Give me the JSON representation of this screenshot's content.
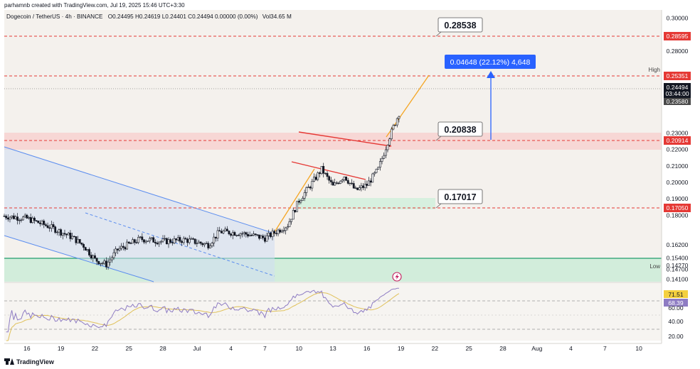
{
  "header": {
    "credit": "parhamnb created with TradingView.com, Jul 19, 2025 15:46 UTC+3:30",
    "symbol_line": "Dogecoin / TetherUS · 4h · BINANCE",
    "ohlc": "O0.24495 H0.24619 L0.24401 C0.24494 0.00000 (0.00%)",
    "volume": "Vol34.65 M"
  },
  "footer": {
    "brand": "TradingView"
  },
  "annotations": {
    "level_1": "0.28538",
    "level_2": "0.20838",
    "level_3": "0.17017",
    "measure": "0.04648 (22.12%) 4,648",
    "high_label": "High",
    "low_label": "Low"
  },
  "price_axis": {
    "ticks": [
      "0.30000",
      "0.28000",
      "0.25777",
      "0.23000",
      "0.22000",
      "0.21000",
      "0.20000",
      "0.19000",
      "0.18000",
      "0.16200",
      "0.15400",
      "0.14700",
      "0.14100"
    ],
    "badges": {
      "red_top": "0.28595",
      "red_high": "0.25351",
      "current": "0.24494",
      "countdown": "03:44:00",
      "prev": "0.23580",
      "red_mid": "0.20914",
      "red_low": "0.17050",
      "low_value": "0.14270"
    }
  },
  "rsi_axis": {
    "ticks": [
      "60.00",
      "40.00",
      "20.00"
    ],
    "badges": {
      "rsi": "71.51",
      "ma": "68.39"
    }
  },
  "time_axis": {
    "ticks": [
      "16",
      "19",
      "22",
      "25",
      "28",
      "Jul",
      "4",
      "7",
      "10",
      "13",
      "16",
      "19",
      "22",
      "25",
      "28",
      "Aug",
      "4",
      "7",
      "10"
    ]
  },
  "colors": {
    "background": "#f4f1ed",
    "candle": "#131722",
    "red_line": "#e53935",
    "channel_blue": "#5b8def",
    "green_zone": "#c9ecd6",
    "red_zone": "#f7d2d0",
    "orange_line": "#f5a623",
    "arrow_blue": "#2962ff",
    "rsi_line": "#8e7cc3",
    "rsi_ma": "#e0c15a"
  },
  "chart_data": {
    "type": "candlestick",
    "title": "Dogecoin / TetherUS · 4h · BINANCE",
    "x_range": [
      "2025-06-14",
      "2025-08-11"
    ],
    "y_range": [
      0.1395,
      0.305
    ],
    "anchors": [
      [
        "2025-06-14",
        0.1795
      ],
      [
        "2025-06-16",
        0.178
      ],
      [
        "2025-06-18",
        0.173
      ],
      [
        "2025-06-20",
        0.1665
      ],
      [
        "2025-06-21",
        0.1615
      ],
      [
        "2025-06-22",
        0.153
      ],
      [
        "2025-06-23",
        0.15
      ],
      [
        "2025-06-24",
        0.159
      ],
      [
        "2025-06-26",
        0.1655
      ],
      [
        "2025-06-28",
        0.164
      ],
      [
        "2025-06-30",
        0.165
      ],
      [
        "2025-07-02",
        0.162
      ],
      [
        "2025-07-03",
        0.17
      ],
      [
        "2025-07-05",
        0.169
      ],
      [
        "2025-07-07",
        0.166
      ],
      [
        "2025-07-08",
        0.17
      ],
      [
        "2025-07-09",
        0.174
      ],
      [
        "2025-07-10",
        0.189
      ],
      [
        "2025-07-11",
        0.198
      ],
      [
        "2025-07-12",
        0.208
      ],
      [
        "2025-07-13",
        0.1975
      ],
      [
        "2025-07-14",
        0.204
      ],
      [
        "2025-07-15",
        0.195
      ],
      [
        "2025-07-16",
        0.1985
      ],
      [
        "2025-07-17",
        0.208
      ],
      [
        "2025-07-18",
        0.228
      ],
      [
        "2025-07-19",
        0.2449
      ]
    ],
    "high": 0.25777,
    "low": 0.1427
  }
}
